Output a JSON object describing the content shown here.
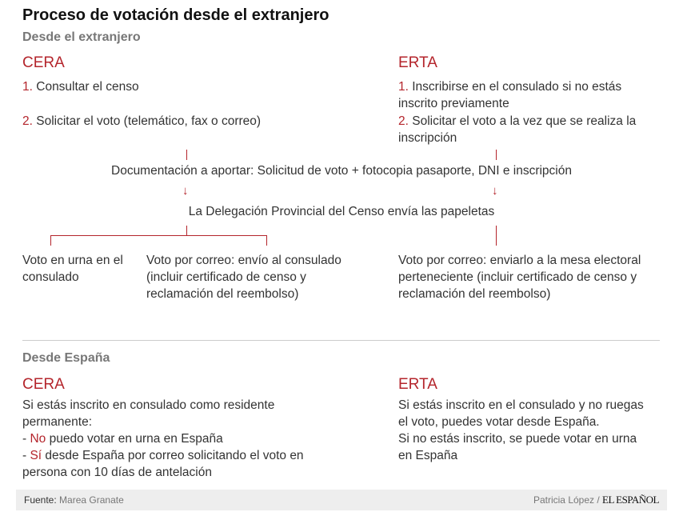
{
  "title": "Proceso de votación desde el extranjero",
  "abroad": {
    "subtitle": "Desde el extranjero",
    "cera": {
      "heading": "CERA",
      "steps": [
        {
          "num": "1.",
          "text": "Consultar el censo"
        },
        {
          "num": "2.",
          "text": "Solicitar el voto (telemático, fax o correo)"
        }
      ]
    },
    "erta": {
      "heading": "ERTA",
      "steps": [
        {
          "num": "1.",
          "text": "Inscribirse en el consulado si no estás inscrito previamente"
        },
        {
          "num": "2.",
          "text": "Solicitar el voto a la vez que se realiza la inscripción"
        }
      ]
    },
    "documentation": "Documentación a aportar: Solicitud de voto + fotocopia pasaporte, DNI e inscripción",
    "delegation": "La Delegación Provincial del Censo envía las papeletas",
    "arrow": "↓",
    "cera_options": [
      "Voto en urna en el consulado",
      "Voto por correo: envío al consulado (incluir certificado de censo y reclamación del reembolso)"
    ],
    "erta_option": "Voto por correo: enviarlo a la mesa electoral perteneciente (incluir certificado de censo y reclamación del reembolso)"
  },
  "spain": {
    "subtitle": "Desde España",
    "cera": {
      "heading": "CERA",
      "intro": "Si estás inscrito en consulado como residente permanente:",
      "items": [
        {
          "prefix": "- ",
          "key": "No",
          "text": " puedo votar en urna en España"
        },
        {
          "prefix": "- ",
          "key": "Sí",
          "text": " desde España por correo solicitando el voto en persona con 10 días de antelación"
        }
      ]
    },
    "erta": {
      "heading": "ERTA",
      "text1": "Si estás inscrito en el consulado y no ruegas el voto, puedes votar desde España.",
      "text2": "Si no estás inscrito, se puede votar en urna en España"
    }
  },
  "footer": {
    "source_label": "Fuente:",
    "source": "Marea Granate",
    "author": "Patricia López /",
    "brand": "EL ESPAÑOL"
  },
  "colors": {
    "accent": "#b4252c",
    "text": "#333333",
    "footer_bg": "#eeeeee"
  }
}
